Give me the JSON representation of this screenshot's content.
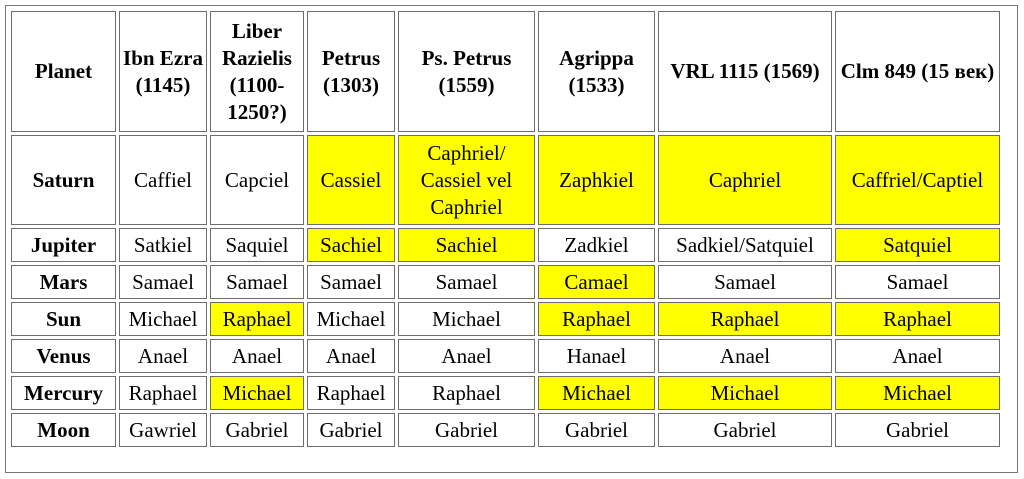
{
  "headers": [
    "Planet",
    "Ibn Ezra (1145)",
    "Liber Razielis (1100-1250?)",
    "Petrus (1303)",
    "Ps. Petrus (1559)",
    "Agrippa (1533)",
    "VRL 1115 (1569)",
    "Clm 849 (15 век)"
  ],
  "rows": [
    {
      "planet": "Saturn",
      "cells": [
        {
          "text": "Caffiel",
          "highlight": false
        },
        {
          "text": "Capciel",
          "highlight": false
        },
        {
          "text": "Cassiel",
          "highlight": true
        },
        {
          "text": "Caphriel/ Cassiel vel Caphriel",
          "highlight": true
        },
        {
          "text": "Zaphkiel",
          "highlight": true
        },
        {
          "text": "Caphriel",
          "highlight": true
        },
        {
          "text": "Caffriel/Captiel",
          "highlight": true
        }
      ]
    },
    {
      "planet": "Jupiter",
      "cells": [
        {
          "text": "Satkiel",
          "highlight": false
        },
        {
          "text": "Saquiel",
          "highlight": false
        },
        {
          "text": "Sachiel",
          "highlight": true
        },
        {
          "text": "Sachiel",
          "highlight": true
        },
        {
          "text": "Zadkiel",
          "highlight": false
        },
        {
          "text": "Sadkiel/Satquiel",
          "highlight": false
        },
        {
          "text": "Satquiel",
          "highlight": true
        }
      ]
    },
    {
      "planet": "Mars",
      "cells": [
        {
          "text": "Samael",
          "highlight": false
        },
        {
          "text": "Samael",
          "highlight": false
        },
        {
          "text": "Samael",
          "highlight": false
        },
        {
          "text": "Samael",
          "highlight": false
        },
        {
          "text": "Camael",
          "highlight": true
        },
        {
          "text": "Samael",
          "highlight": false
        },
        {
          "text": "Samael",
          "highlight": false
        }
      ]
    },
    {
      "planet": "Sun",
      "cells": [
        {
          "text": "Michael",
          "highlight": false
        },
        {
          "text": "Raphael",
          "highlight": true
        },
        {
          "text": "Michael",
          "highlight": false
        },
        {
          "text": "Michael",
          "highlight": false
        },
        {
          "text": "Raphael",
          "highlight": true
        },
        {
          "text": "Raphael",
          "highlight": true
        },
        {
          "text": "Raphael",
          "highlight": true
        }
      ]
    },
    {
      "planet": "Venus",
      "cells": [
        {
          "text": "Anael",
          "highlight": false
        },
        {
          "text": "Anael",
          "highlight": false
        },
        {
          "text": "Anael",
          "highlight": false
        },
        {
          "text": "Anael",
          "highlight": false
        },
        {
          "text": "Hanael",
          "highlight": false
        },
        {
          "text": "Anael",
          "highlight": false
        },
        {
          "text": "Anael",
          "highlight": false
        }
      ]
    },
    {
      "planet": "Mercury",
      "cells": [
        {
          "text": "Raphael",
          "highlight": false
        },
        {
          "text": "Michael",
          "highlight": true
        },
        {
          "text": "Raphael",
          "highlight": false
        },
        {
          "text": "Raphael",
          "highlight": false
        },
        {
          "text": "Michael",
          "highlight": true
        },
        {
          "text": "Michael",
          "highlight": true
        },
        {
          "text": "Michael",
          "highlight": true
        }
      ]
    },
    {
      "planet": "Moon",
      "cells": [
        {
          "text": "Gawriel",
          "highlight": false
        },
        {
          "text": "Gabriel",
          "highlight": false
        },
        {
          "text": "Gabriel",
          "highlight": false
        },
        {
          "text": "Gabriel",
          "highlight": false
        },
        {
          "text": "Gabriel",
          "highlight": false
        },
        {
          "text": "Gabriel",
          "highlight": false
        },
        {
          "text": "Gabriel",
          "highlight": false
        }
      ]
    }
  ],
  "colors": {
    "highlight": "#ffff00",
    "border": "#6d6d6d",
    "background": "#ffffff"
  }
}
